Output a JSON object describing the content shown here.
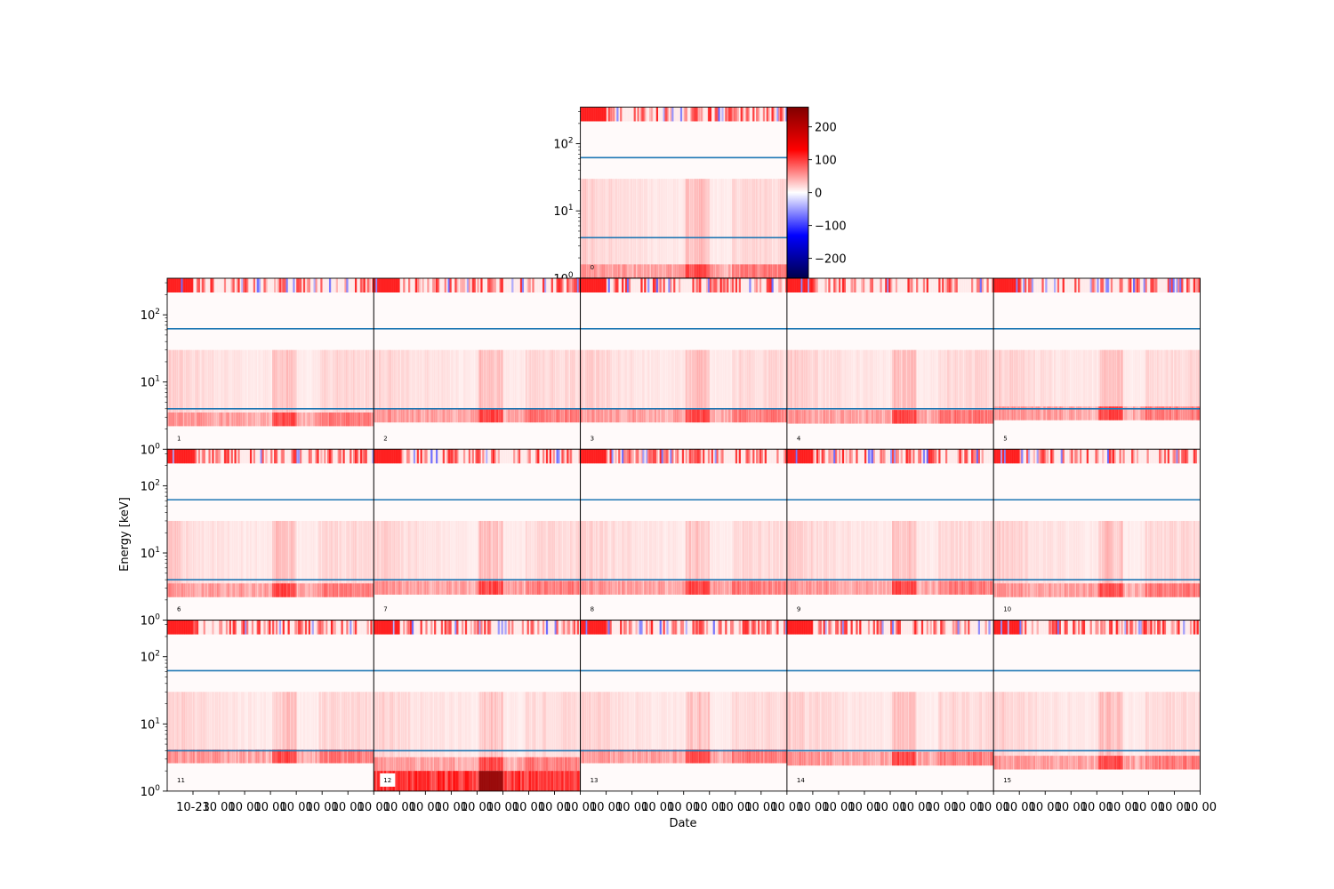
{
  "chart_data": {
    "type": "heatmap",
    "xlabel": "Date",
    "ylabel": "Energy [keV]",
    "yscale": "log",
    "ylim": [
      1,
      350
    ],
    "y_ticks": [
      {
        "value": 1,
        "base": "10",
        "exp": "0"
      },
      {
        "value": 10,
        "base": "10",
        "exp": "1"
      },
      {
        "value": 100,
        "base": "10",
        "exp": "2"
      }
    ],
    "reference_lines_keV": [
      4,
      62
    ],
    "reference_line_color": "#1f77b4",
    "colorbar": {
      "cmap": "seismic",
      "vmin": -260,
      "vmax": 260,
      "ticks": [
        200,
        100,
        0,
        -100,
        -200
      ],
      "tick_labels": [
        "200",
        "100",
        "0",
        "−100",
        "−200"
      ]
    },
    "x_tick_labels_bottom_row": [
      "10-23",
      "10 00",
      "10 00",
      "10 00",
      "10 00",
      "10 00",
      "10 00",
      "10 00",
      "10 00",
      "10 00",
      "10 00",
      "10 00",
      "10 00",
      "10 00",
      "10 00",
      "10 00",
      "10 00",
      "10 00",
      "10 00",
      "10 00",
      "10 00",
      "10 00",
      "10 00",
      "10 00",
      "10 00",
      "10 00",
      "10 00",
      "10 00",
      "10 00",
      "10 00",
      "10 00",
      "10 00",
      "10 00",
      "10 00",
      "10 00",
      "10 00",
      "10 00",
      "10 00",
      "10 00",
      "10 00",
      "10 00"
    ],
    "panels": [
      {
        "label": "0",
        "low_cut_keV": 1.0
      },
      {
        "label": "1",
        "low_cut_keV": 2.2
      },
      {
        "label": "2",
        "low_cut_keV": 2.5
      },
      {
        "label": "3",
        "low_cut_keV": 2.5
      },
      {
        "label": "4",
        "low_cut_keV": 2.4
      },
      {
        "label": "5",
        "low_cut_keV": 2.7
      },
      {
        "label": "6",
        "low_cut_keV": 2.2
      },
      {
        "label": "7",
        "low_cut_keV": 2.4
      },
      {
        "label": "8",
        "low_cut_keV": 2.4
      },
      {
        "label": "9",
        "low_cut_keV": 2.4
      },
      {
        "label": "10",
        "low_cut_keV": 2.2
      },
      {
        "label": "11",
        "low_cut_keV": 2.6
      },
      {
        "label": "12",
        "low_cut_keV": 2.0
      },
      {
        "label": "13",
        "low_cut_keV": 2.6
      },
      {
        "label": "14",
        "low_cut_keV": 2.4
      },
      {
        "label": "15",
        "low_cut_keV": 2.1
      }
    ]
  }
}
